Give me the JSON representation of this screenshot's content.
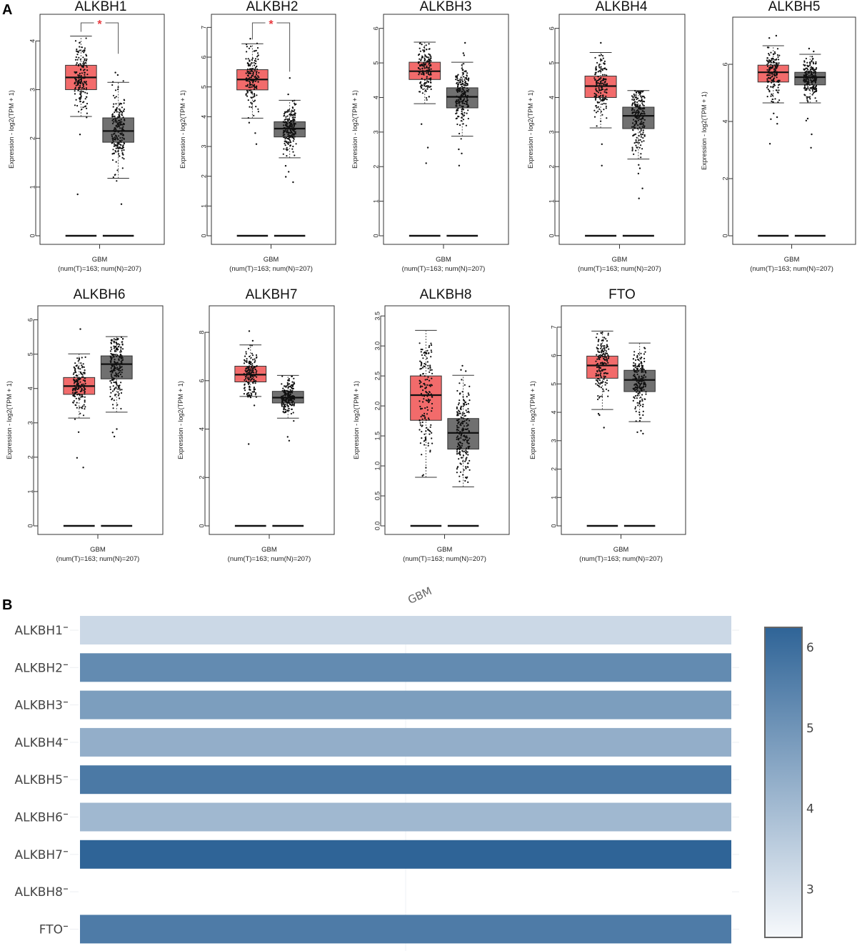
{
  "panels": {
    "a_label": "A",
    "b_label": "B"
  },
  "colors": {
    "tumor": "#f26b6b",
    "normal": "#707070",
    "significance": "#e8383d",
    "heat_low": "#f7f9fc",
    "heat_high": "#2f6497"
  },
  "chart_data": [
    {
      "type": "box",
      "panel": "A",
      "title": "ALKBH1",
      "ylabel": "Expression - log2(TPM + 1)",
      "xlabel": "GBM",
      "xsublabel": "(num(T)=163; num(N)=207)",
      "ylim": [
        0,
        4.4
      ],
      "yticks": [
        0,
        1,
        2,
        3,
        4
      ],
      "significant": true,
      "significance_mark": "*",
      "groups": [
        {
          "name": "Tumor",
          "n": 163,
          "q1": 3.0,
          "median": 3.25,
          "q3": 3.5,
          "whisker_low": 2.45,
          "whisker_high": 4.1,
          "outliers": [
            2.08,
            0.85
          ],
          "point_range": [
            2.3,
            4.1
          ]
        },
        {
          "name": "Normal",
          "n": 207,
          "q1": 1.92,
          "median": 2.15,
          "q3": 2.42,
          "whisker_low": 1.18,
          "whisker_high": 3.15,
          "outliers": [
            3.3,
            3.35,
            0.65
          ],
          "point_range": [
            1.1,
            3.2
          ]
        }
      ],
      "zero_lines": [
        0,
        0
      ]
    },
    {
      "type": "box",
      "panel": "A",
      "title": "ALKBH2",
      "ylabel": "Expression - log2(TPM + 1)",
      "xlabel": "GBM",
      "xsublabel": "(num(T)=163; num(N)=207)",
      "ylim": [
        0,
        7.2
      ],
      "yticks": [
        0,
        1,
        2,
        3,
        4,
        5,
        6,
        7
      ],
      "significant": true,
      "significance_mark": "*",
      "groups": [
        {
          "name": "Tumor",
          "n": 163,
          "q1": 4.9,
          "median": 5.25,
          "q3": 5.58,
          "whisker_low": 3.95,
          "whisker_high": 6.45,
          "outliers": [
            6.62,
            3.8,
            3.45,
            3.08
          ],
          "point_range": [
            3.9,
            6.5
          ]
        },
        {
          "name": "Normal",
          "n": 207,
          "q1": 3.32,
          "median": 3.6,
          "q3": 3.83,
          "whisker_low": 2.62,
          "whisker_high": 4.55,
          "outliers": [
            5.3,
            4.75,
            2.35,
            2.15,
            1.98,
            1.8
          ],
          "point_range": [
            2.6,
            4.65
          ]
        }
      ],
      "zero_lines": [
        0,
        0
      ]
    },
    {
      "type": "box",
      "panel": "A",
      "title": "ALKBH3",
      "ylabel": "Expression - log2(TPM + 1)",
      "xlabel": "GBM",
      "xsublabel": "(num(T)=163; num(N)=207)",
      "ylim": [
        0,
        6.2
      ],
      "yticks": [
        0,
        1,
        2,
        3,
        4,
        5,
        6
      ],
      "significant": false,
      "groups": [
        {
          "name": "Tumor",
          "n": 163,
          "q1": 4.52,
          "median": 4.76,
          "q3": 5.02,
          "whisker_low": 3.82,
          "whisker_high": 5.6,
          "outliers": [
            3.23,
            2.55,
            2.1
          ],
          "point_range": [
            3.8,
            5.6
          ]
        },
        {
          "name": "Normal",
          "n": 207,
          "q1": 3.7,
          "median": 4.02,
          "q3": 4.28,
          "whisker_low": 2.88,
          "whisker_high": 5.02,
          "outliers": [
            5.58,
            5.28,
            5.22,
            2.5,
            2.38,
            2.03
          ],
          "point_range": [
            2.75,
            5.0
          ]
        }
      ],
      "zero_lines": [
        0,
        0
      ]
    },
    {
      "type": "box",
      "panel": "A",
      "title": "ALKBH4",
      "ylabel": "Expression - log2(TPM + 1)",
      "xlabel": "GBM",
      "xsublabel": "(num(T)=163; num(N)=207)",
      "ylim": [
        0,
        6.2
      ],
      "yticks": [
        0,
        1,
        2,
        3,
        4,
        5,
        6
      ],
      "significant": false,
      "groups": [
        {
          "name": "Tumor",
          "n": 163,
          "q1": 4.0,
          "median": 4.33,
          "q3": 4.62,
          "whisker_low": 3.12,
          "whisker_high": 5.3,
          "outliers": [
            5.58,
            2.65,
            2.03
          ],
          "point_range": [
            3.1,
            5.25
          ]
        },
        {
          "name": "Normal",
          "n": 207,
          "q1": 3.1,
          "median": 3.47,
          "q3": 3.72,
          "whisker_low": 2.22,
          "whisker_high": 4.2,
          "outliers": [
            2.05,
            1.95,
            1.8,
            1.37,
            1.08
          ],
          "point_range": [
            2.2,
            4.2
          ]
        }
      ],
      "zero_lines": [
        0,
        0
      ]
    },
    {
      "type": "box",
      "panel": "A",
      "title": "ALKBH5",
      "ylabel": "Expression - log2(TPM + 1)",
      "xlabel": "GBM",
      "xsublabel": "(num(T)=163; num(N)=207)",
      "ylim": [
        0,
        7.4
      ],
      "yticks": [
        0,
        2,
        4,
        6
      ],
      "significant": false,
      "groups": [
        {
          "name": "Tumor",
          "n": 163,
          "q1": 5.38,
          "median": 5.72,
          "q3": 5.97,
          "whisker_low": 4.65,
          "whisker_high": 6.65,
          "outliers": [
            7.0,
            6.92,
            4.28,
            4.15,
            4.08,
            3.92,
            3.22
          ],
          "point_range": [
            4.6,
            6.6
          ]
        },
        {
          "name": "Normal",
          "n": 207,
          "q1": 5.28,
          "median": 5.55,
          "q3": 5.72,
          "whisker_low": 4.65,
          "whisker_high": 6.35,
          "outliers": [
            6.55,
            6.45,
            4.1,
            4.03,
            3.55,
            3.08
          ],
          "point_range": [
            4.3,
            6.35
          ]
        }
      ],
      "zero_lines": [
        0,
        0
      ]
    },
    {
      "type": "box",
      "panel": "A",
      "title": "ALKBH6",
      "ylabel": "Expression - log2(TPM + 1)",
      "xlabel": "GBM",
      "xsublabel": "(num(T)=163; num(N)=207)",
      "ylim": [
        0,
        6.2
      ],
      "yticks": [
        0,
        1,
        2,
        3,
        4,
        5,
        6
      ],
      "significant": false,
      "groups": [
        {
          "name": "Tumor",
          "n": 163,
          "q1": 3.83,
          "median": 4.07,
          "q3": 4.32,
          "whisker_low": 3.14,
          "whisker_high": 5.01,
          "outliers": [
            5.73,
            2.73,
            1.98,
            1.7
          ],
          "point_range": [
            3.1,
            4.95
          ]
        },
        {
          "name": "Normal",
          "n": 207,
          "q1": 4.28,
          "median": 4.71,
          "q3": 4.95,
          "whisker_low": 3.31,
          "whisker_high": 5.51,
          "outliers": [
            2.82,
            2.72,
            2.6
          ],
          "point_range": [
            2.9,
            5.5
          ]
        }
      ],
      "zero_lines": [
        0,
        0
      ]
    },
    {
      "type": "box",
      "panel": "A",
      "title": "ALKBH7",
      "ylabel": "Expression - log2(TPM + 1)",
      "xlabel": "GBM",
      "xsublabel": "(num(T)=163; num(N)=207)",
      "ylim": [
        0,
        8.8
      ],
      "yticks": [
        0,
        2,
        4,
        6,
        8
      ],
      "significant": false,
      "groups": [
        {
          "name": "Tumor",
          "n": 163,
          "q1": 5.95,
          "median": 6.25,
          "q3": 6.6,
          "whisker_low": 5.35,
          "whisker_high": 7.48,
          "outliers": [
            8.05,
            7.65,
            4.98,
            3.38
          ],
          "point_range": [
            5.3,
            7.5
          ]
        },
        {
          "name": "Normal",
          "n": 207,
          "q1": 5.08,
          "median": 5.3,
          "q3": 5.56,
          "whisker_low": 4.45,
          "whisker_high": 6.22,
          "outliers": [
            3.68,
            3.52
          ],
          "point_range": [
            4.25,
            6.2
          ]
        }
      ],
      "zero_lines": [
        0,
        0
      ]
    },
    {
      "type": "box",
      "panel": "A",
      "title": "ALKBH8",
      "ylabel": "Expression - log2(TPM + 1)",
      "xlabel": "GBM",
      "xsublabel": "(num(T)=163; num(N)=207)",
      "ylim": [
        0,
        3.55
      ],
      "yticks": [
        0.0,
        0.5,
        1.0,
        1.5,
        2.0,
        2.5,
        3.0,
        3.5
      ],
      "ytick_format": "fixed1",
      "significant": false,
      "groups": [
        {
          "name": "Tumor",
          "n": 163,
          "q1": 1.76,
          "median": 2.18,
          "q3": 2.5,
          "whisker_low": 0.81,
          "whisker_high": 3.26,
          "outliers": [],
          "point_range": [
            0.8,
            3.05
          ]
        },
        {
          "name": "Normal",
          "n": 207,
          "q1": 1.28,
          "median": 1.55,
          "q3": 1.79,
          "whisker_low": 0.65,
          "whisker_high": 2.51,
          "outliers": [
            2.67,
            2.6,
            2.58
          ],
          "point_range": [
            0.68,
            2.5
          ]
        }
      ],
      "zero_lines": [
        0,
        0
      ]
    },
    {
      "type": "box",
      "panel": "A",
      "title": "FTO",
      "ylabel": "Expression - log2(TPM + 1)",
      "xlabel": "GBM",
      "xsublabel": "(num(T)=163; num(N)=207)",
      "ylim": [
        0,
        7.5
      ],
      "yticks": [
        0,
        1,
        2,
        3,
        4,
        5,
        6,
        7
      ],
      "significant": false,
      "groups": [
        {
          "name": "Tumor",
          "n": 163,
          "q1": 5.2,
          "median": 5.65,
          "q3": 5.98,
          "whisker_low": 4.1,
          "whisker_high": 6.86,
          "outliers": [
            3.95,
            3.9,
            3.46
          ],
          "point_range": [
            4.0,
            6.85
          ]
        },
        {
          "name": "Normal",
          "n": 207,
          "q1": 4.73,
          "median": 5.14,
          "q3": 5.48,
          "whisker_low": 3.67,
          "whisker_high": 6.44,
          "outliers": [
            3.35,
            3.3,
            3.25
          ],
          "point_range": [
            3.6,
            6.4
          ]
        }
      ],
      "zero_lines": [
        0,
        0
      ]
    },
    {
      "type": "heatmap",
      "panel": "B",
      "columns": [
        "GBM"
      ],
      "rows": [
        "ALKBH1",
        "ALKBH2",
        "ALKBH3",
        "ALKBH4",
        "ALKBH5",
        "ALKBH6",
        "ALKBH7",
        "ALKBH8",
        "FTO"
      ],
      "values": [
        3.25,
        5.25,
        4.76,
        4.33,
        5.72,
        4.07,
        6.25,
        null,
        5.65
      ],
      "colorbar": {
        "range": [
          2.4,
          6.25
        ],
        "ticks": [
          3,
          4,
          5,
          6
        ]
      }
    }
  ]
}
